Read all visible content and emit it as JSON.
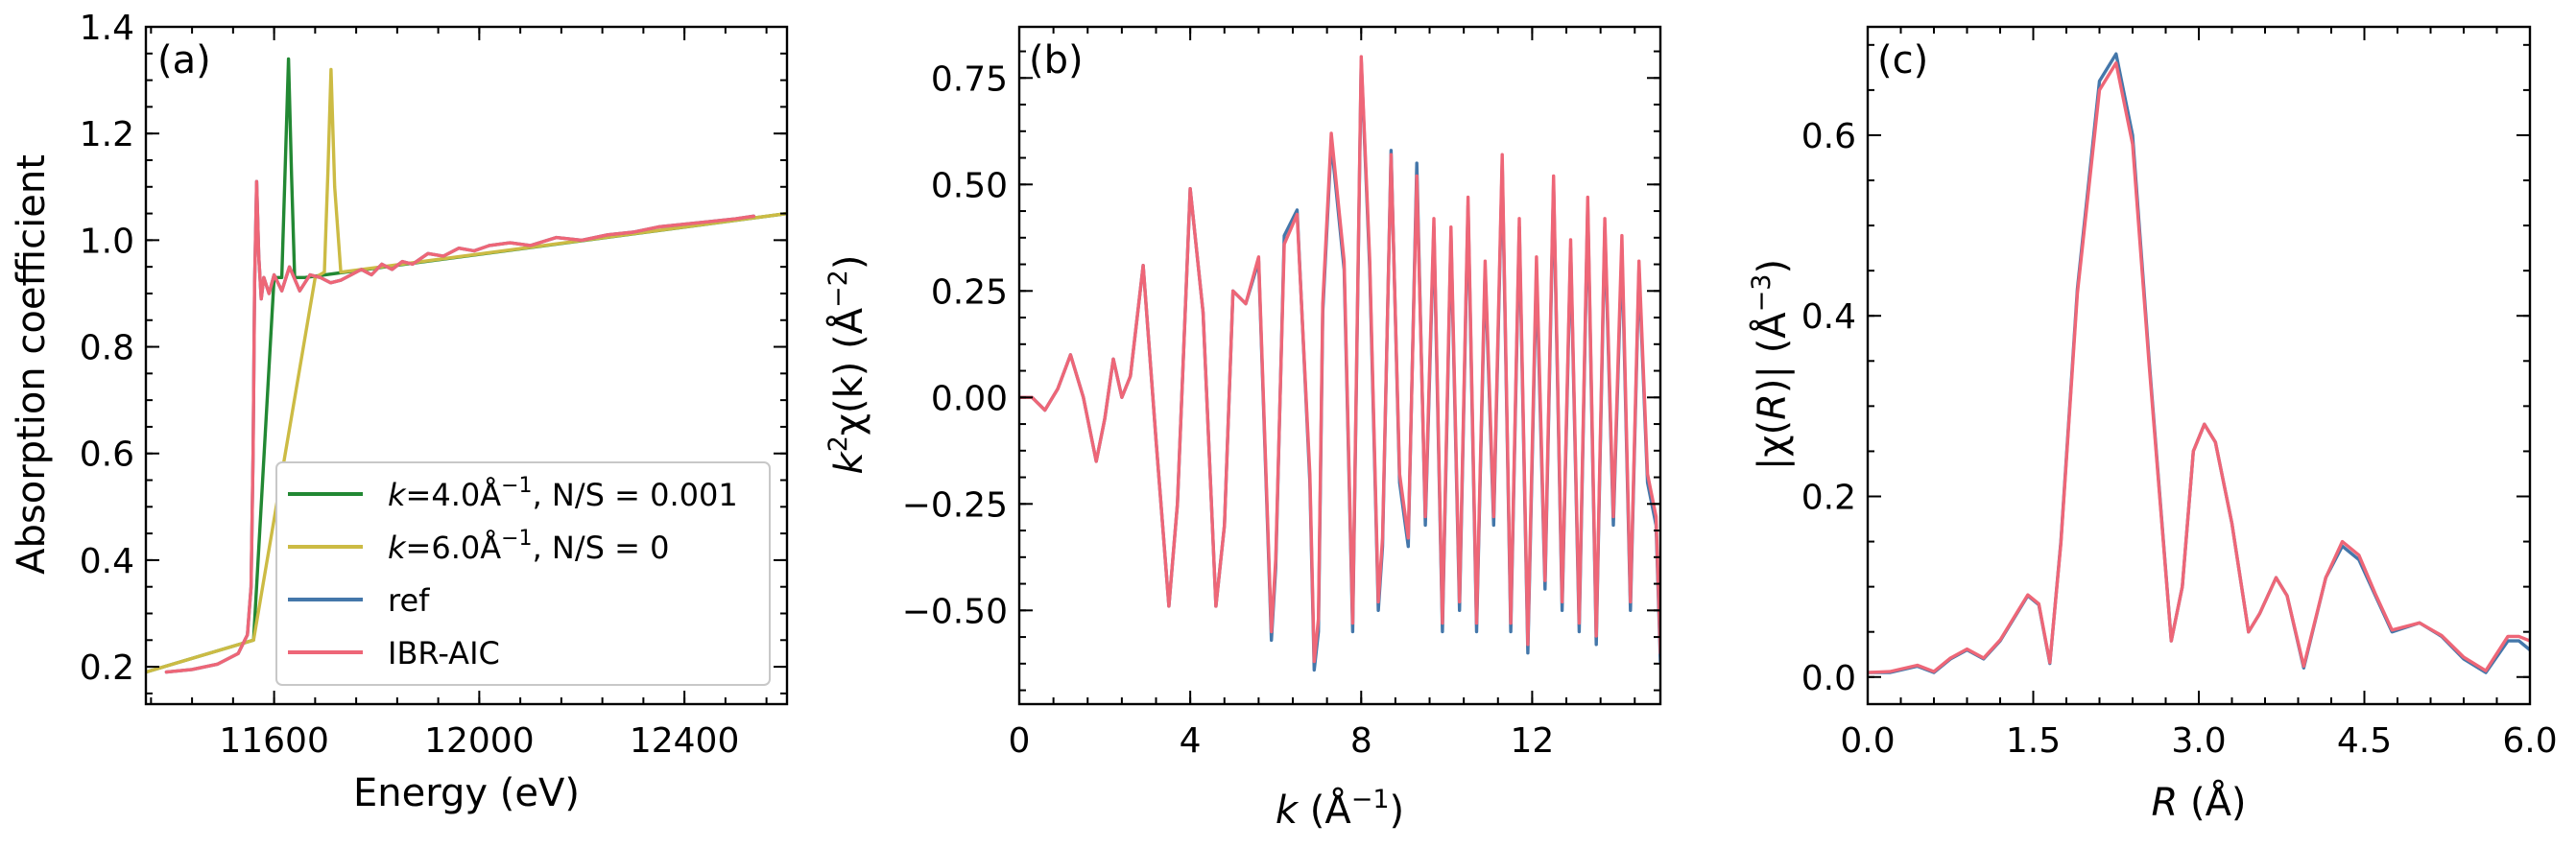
{
  "colors": {
    "green": "#228833",
    "yellow": "#CCBB44",
    "blue": "#4477AA",
    "red": "#EE6677"
  },
  "chart_data": [
    {
      "type": "line",
      "panel_label": "(a)",
      "xlabel": "Energy (eV)",
      "ylabel": "Absorption coefficient",
      "xlim": [
        11350,
        12600
      ],
      "ylim": [
        0.13,
        1.4
      ],
      "x_ticks": [
        11600,
        12000,
        12400
      ],
      "x_tick_labels": [
        "11600",
        "12000",
        "12400"
      ],
      "y_ticks": [
        0.2,
        0.4,
        0.6,
        0.8,
        1.0,
        1.2,
        1.4
      ],
      "y_tick_labels": [
        "0.2",
        "0.4",
        "0.6",
        "0.8",
        "1.0",
        "1.2",
        "1.4"
      ],
      "legend": {
        "placement": "lower-right",
        "entries": [
          {
            "label_italic": "k",
            "label_rest": "=4.0Å",
            "label_sup": "−1",
            "label_tail": ", N/S = 0.001",
            "color": "#228833"
          },
          {
            "label_italic": "k",
            "label_rest": "=6.0Å",
            "label_sup": "−1",
            "label_tail": ", N/S = 0",
            "color": "#CCBB44"
          },
          {
            "label_italic": "",
            "label_rest": "ref",
            "label_sup": "",
            "label_tail": "",
            "color": "#4477AA"
          },
          {
            "label_italic": "",
            "label_rest": "IBR-AIC",
            "label_sup": "",
            "label_tail": "",
            "color": "#EE6677"
          }
        ]
      },
      "series": [
        {
          "color": "#228833",
          "x": [
            11350,
            11560,
            11600,
            11615,
            11622,
            11628,
            11634,
            11640,
            11660,
            12600
          ],
          "y": [
            0.19,
            0.25,
            0.93,
            0.93,
            1.15,
            1.34,
            1.12,
            0.93,
            0.93,
            1.05
          ]
        },
        {
          "color": "#CCBB44",
          "x": [
            11350,
            11560,
            11680,
            11698,
            11705,
            11711,
            11718,
            11730,
            12600
          ],
          "y": [
            0.19,
            0.25,
            0.93,
            0.94,
            1.13,
            1.32,
            1.1,
            0.94,
            1.05
          ]
        },
        {
          "color": "#4477AA",
          "x": [
            11390,
            11440,
            11490,
            11530,
            11548,
            11555,
            11559,
            11562,
            11566,
            11570,
            11575,
            11580,
            11590,
            11600,
            11615,
            11630,
            11650,
            11670,
            11690,
            11710,
            11730,
            11750,
            11770,
            11790,
            11810,
            11830,
            11850,
            11870,
            11900,
            11930,
            11960,
            11990,
            12020,
            12060,
            12100,
            12150,
            12200,
            12250,
            12300,
            12350,
            12400,
            12450,
            12500,
            12535
          ],
          "y": [
            0.19,
            0.195,
            0.205,
            0.225,
            0.26,
            0.35,
            0.6,
            0.92,
            1.11,
            0.97,
            0.89,
            0.93,
            0.9,
            0.935,
            0.905,
            0.95,
            0.905,
            0.935,
            0.93,
            0.92,
            0.925,
            0.935,
            0.945,
            0.935,
            0.955,
            0.945,
            0.96,
            0.955,
            0.975,
            0.97,
            0.985,
            0.98,
            0.99,
            0.995,
            0.99,
            1.005,
            1.0,
            1.01,
            1.015,
            1.025,
            1.03,
            1.035,
            1.04,
            1.045
          ]
        },
        {
          "color": "#EE6677",
          "x": [
            11390,
            11440,
            11490,
            11530,
            11548,
            11555,
            11559,
            11562,
            11566,
            11570,
            11575,
            11580,
            11590,
            11600,
            11615,
            11630,
            11650,
            11670,
            11690,
            11710,
            11730,
            11750,
            11770,
            11790,
            11810,
            11830,
            11850,
            11870,
            11900,
            11930,
            11960,
            11990,
            12020,
            12060,
            12100,
            12150,
            12200,
            12250,
            12300,
            12350,
            12400,
            12450,
            12500,
            12535
          ],
          "y": [
            0.19,
            0.195,
            0.205,
            0.225,
            0.26,
            0.35,
            0.6,
            0.92,
            1.11,
            0.97,
            0.89,
            0.93,
            0.9,
            0.935,
            0.905,
            0.95,
            0.905,
            0.935,
            0.93,
            0.92,
            0.925,
            0.935,
            0.945,
            0.935,
            0.955,
            0.945,
            0.96,
            0.955,
            0.975,
            0.97,
            0.985,
            0.98,
            0.99,
            0.995,
            0.99,
            1.005,
            1.0,
            1.01,
            1.015,
            1.025,
            1.03,
            1.035,
            1.04,
            1.045
          ]
        }
      ]
    },
    {
      "type": "line",
      "panel_label": "(b)",
      "xlabel_italic": "k",
      "xlabel_rest": " (Å",
      "xlabel_sup": "−1",
      "xlabel_tail": ")",
      "ylabel_italic": "k",
      "ylabel_sup1": "2",
      "ylabel_rest": "χ(k) (Å",
      "ylabel_sup2": "−2",
      "ylabel_tail": ")",
      "xlim": [
        0,
        15
      ],
      "ylim": [
        -0.72,
        0.87
      ],
      "x_ticks": [
        0,
        4,
        8,
        12
      ],
      "x_tick_labels": [
        "0",
        "4",
        "8",
        "12"
      ],
      "y_ticks": [
        -0.5,
        -0.25,
        0.0,
        0.25,
        0.5,
        0.75
      ],
      "y_tick_labels": [
        "−0.50",
        "−0.25",
        "0.00",
        "0.25",
        "0.50",
        "0.75"
      ],
      "series": [
        {
          "color": "#4477AA",
          "x": [
            0.0,
            0.3,
            0.6,
            0.9,
            1.2,
            1.5,
            1.8,
            2.0,
            2.2,
            2.4,
            2.6,
            2.9,
            3.2,
            3.5,
            3.7,
            4.0,
            4.3,
            4.6,
            4.8,
            5.0,
            5.3,
            5.6,
            5.9,
            6.0,
            6.2,
            6.5,
            6.8,
            6.9,
            7.0,
            7.1,
            7.3,
            7.6,
            7.8,
            8.0,
            8.2,
            8.4,
            8.5,
            8.7,
            8.9,
            9.1,
            9.3,
            9.5,
            9.7,
            9.9,
            10.1,
            10.3,
            10.5,
            10.7,
            10.9,
            11.1,
            11.3,
            11.5,
            11.7,
            11.9,
            12.1,
            12.3,
            12.5,
            12.7,
            12.9,
            13.1,
            13.3,
            13.5,
            13.7,
            13.9,
            14.1,
            14.3,
            14.5,
            14.7,
            14.9,
            15.0
          ],
          "y": [
            0.0,
            0.0,
            -0.03,
            0.02,
            0.1,
            0.0,
            -0.15,
            -0.05,
            0.09,
            0.0,
            0.05,
            0.31,
            -0.1,
            -0.49,
            -0.25,
            0.49,
            0.2,
            -0.49,
            -0.3,
            0.25,
            0.22,
            0.32,
            -0.57,
            -0.4,
            0.38,
            0.44,
            -0.2,
            -0.64,
            -0.55,
            0.2,
            0.6,
            0.3,
            -0.55,
            0.79,
            0.3,
            -0.5,
            -0.35,
            0.58,
            -0.2,
            -0.35,
            0.55,
            -0.3,
            0.4,
            -0.55,
            0.38,
            -0.5,
            0.45,
            -0.55,
            0.3,
            -0.3,
            0.55,
            -0.55,
            0.4,
            -0.6,
            0.3,
            -0.45,
            0.5,
            -0.5,
            0.35,
            -0.55,
            0.45,
            -0.58,
            0.4,
            -0.3,
            0.35,
            -0.5,
            0.3,
            -0.2,
            -0.3,
            -0.62
          ]
        },
        {
          "color": "#EE6677",
          "x": [
            0.0,
            0.3,
            0.6,
            0.9,
            1.2,
            1.5,
            1.8,
            2.0,
            2.2,
            2.4,
            2.6,
            2.9,
            3.2,
            3.5,
            3.7,
            4.0,
            4.3,
            4.6,
            4.8,
            5.0,
            5.3,
            5.6,
            5.9,
            6.0,
            6.2,
            6.5,
            6.8,
            6.9,
            7.0,
            7.1,
            7.3,
            7.6,
            7.8,
            8.0,
            8.2,
            8.4,
            8.5,
            8.7,
            8.9,
            9.1,
            9.3,
            9.5,
            9.7,
            9.9,
            10.1,
            10.3,
            10.5,
            10.7,
            10.9,
            11.1,
            11.3,
            11.5,
            11.7,
            11.9,
            12.1,
            12.3,
            12.5,
            12.7,
            12.9,
            13.1,
            13.3,
            13.5,
            13.7,
            13.9,
            14.1,
            14.3,
            14.5,
            14.7,
            14.9,
            15.0
          ],
          "y": [
            0.0,
            0.0,
            -0.03,
            0.02,
            0.1,
            0.0,
            -0.15,
            -0.05,
            0.09,
            0.0,
            0.05,
            0.31,
            -0.1,
            -0.49,
            -0.25,
            0.49,
            0.2,
            -0.49,
            -0.3,
            0.25,
            0.22,
            0.33,
            -0.55,
            -0.38,
            0.36,
            0.43,
            -0.18,
            -0.62,
            -0.52,
            0.22,
            0.62,
            0.32,
            -0.53,
            0.8,
            0.32,
            -0.48,
            -0.33,
            0.57,
            -0.18,
            -0.33,
            0.52,
            -0.28,
            0.42,
            -0.53,
            0.4,
            -0.48,
            0.47,
            -0.53,
            0.32,
            -0.28,
            0.57,
            -0.53,
            0.42,
            -0.58,
            0.33,
            -0.43,
            0.52,
            -0.48,
            0.37,
            -0.53,
            0.47,
            -0.56,
            0.42,
            -0.28,
            0.38,
            -0.48,
            0.32,
            -0.18,
            -0.28,
            -0.6
          ]
        }
      ]
    },
    {
      "type": "line",
      "panel_label": "(c)",
      "xlabel_italic": "R",
      "xlabel_rest": " (Å)",
      "ylabel_bar1": "|χ(",
      "ylabel_italic": "R",
      "ylabel_bar2": ")| (Å",
      "ylabel_sup": "−3",
      "ylabel_tail": ")",
      "xlim": [
        0,
        6
      ],
      "ylim": [
        -0.03,
        0.72
      ],
      "x_ticks": [
        0.0,
        1.5,
        3.0,
        4.5,
        6.0
      ],
      "x_tick_labels": [
        "0.0",
        "1.5",
        "3.0",
        "4.5",
        "6.0"
      ],
      "y_ticks": [
        0.0,
        0.2,
        0.4,
        0.6
      ],
      "y_tick_labels": [
        "0.0",
        "0.2",
        "0.4",
        "0.6"
      ],
      "series": [
        {
          "color": "#4477AA",
          "x": [
            0.0,
            0.2,
            0.45,
            0.6,
            0.75,
            0.9,
            1.05,
            1.2,
            1.45,
            1.55,
            1.65,
            1.75,
            1.9,
            2.1,
            2.25,
            2.4,
            2.55,
            2.75,
            2.85,
            2.95,
            3.05,
            3.15,
            3.3,
            3.45,
            3.55,
            3.7,
            3.8,
            3.95,
            4.15,
            4.3,
            4.45,
            4.6,
            4.75,
            5.0,
            5.2,
            5.4,
            5.6,
            5.8,
            5.9,
            6.0
          ],
          "y": [
            0.005,
            0.005,
            0.012,
            0.005,
            0.02,
            0.03,
            0.02,
            0.04,
            0.09,
            0.08,
            0.015,
            0.15,
            0.43,
            0.66,
            0.69,
            0.6,
            0.35,
            0.04,
            0.1,
            0.25,
            0.28,
            0.26,
            0.17,
            0.05,
            0.07,
            0.11,
            0.09,
            0.01,
            0.11,
            0.145,
            0.13,
            0.09,
            0.05,
            0.06,
            0.045,
            0.02,
            0.005,
            0.04,
            0.04,
            0.03
          ]
        },
        {
          "color": "#EE6677",
          "x": [
            0.0,
            0.2,
            0.45,
            0.6,
            0.75,
            0.9,
            1.05,
            1.2,
            1.45,
            1.55,
            1.65,
            1.75,
            1.9,
            2.1,
            2.25,
            2.4,
            2.55,
            2.75,
            2.85,
            2.95,
            3.05,
            3.15,
            3.3,
            3.45,
            3.55,
            3.7,
            3.8,
            3.95,
            4.15,
            4.3,
            4.45,
            4.6,
            4.75,
            5.0,
            5.2,
            5.4,
            5.6,
            5.8,
            5.9,
            6.0
          ],
          "y": [
            0.005,
            0.006,
            0.013,
            0.006,
            0.021,
            0.031,
            0.021,
            0.041,
            0.091,
            0.081,
            0.016,
            0.148,
            0.425,
            0.65,
            0.68,
            0.59,
            0.345,
            0.04,
            0.1,
            0.25,
            0.28,
            0.26,
            0.17,
            0.05,
            0.07,
            0.11,
            0.09,
            0.012,
            0.11,
            0.15,
            0.135,
            0.092,
            0.052,
            0.06,
            0.046,
            0.022,
            0.007,
            0.045,
            0.045,
            0.04
          ]
        }
      ]
    }
  ]
}
